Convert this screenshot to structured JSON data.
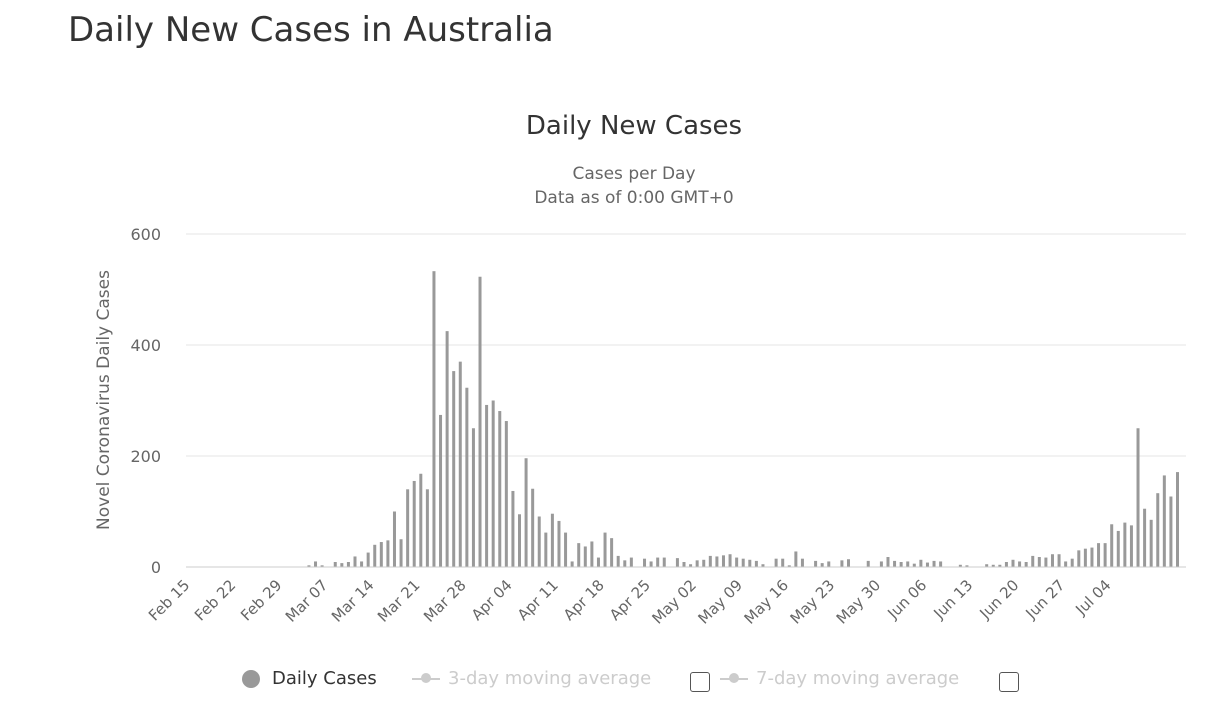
{
  "page": {
    "title": "Daily New Cases in Australia"
  },
  "chart_data": {
    "type": "bar",
    "title": "Daily New Cases",
    "subtitle": [
      "Cases per Day",
      "Data as of 0:00 GMT+0"
    ],
    "xlabel": "",
    "ylabel": "Novel Coronavirus Daily Cases",
    "ylim": [
      0,
      600
    ],
    "yticks": [
      0,
      200,
      400,
      600
    ],
    "grid": true,
    "legend_position": "bottom",
    "tick_labels": [
      "Feb 15",
      "Feb 22",
      "Feb 29",
      "Mar 07",
      "Mar 14",
      "Mar 21",
      "Mar 28",
      "Apr 04",
      "Apr 11",
      "Apr 18",
      "Apr 25",
      "May 02",
      "May 09",
      "May 16",
      "May 23",
      "May 30",
      "Jun 06",
      "Jun 13",
      "Jun 20",
      "Jun 27",
      "Jul 04"
    ],
    "colors": {
      "bar": "#999999",
      "grid": "#e6e6e6",
      "axis": "#cccccc",
      "text": "#666666"
    },
    "series": [
      {
        "name": "Daily Cases",
        "start_date": "Feb 15",
        "values": [
          0,
          0,
          0,
          0,
          0,
          0,
          0,
          0,
          0,
          0,
          0,
          0,
          0,
          0,
          0,
          0,
          0,
          0,
          3,
          10,
          3,
          0,
          9,
          7,
          9,
          19,
          10,
          26,
          40,
          45,
          48,
          100,
          50,
          140,
          155,
          168,
          140,
          533,
          274,
          425,
          353,
          370,
          323,
          250,
          523,
          292,
          300,
          281,
          263,
          137,
          95,
          196,
          141,
          91,
          62,
          96,
          83,
          62,
          10,
          43,
          37,
          46,
          17,
          62,
          52,
          20,
          12,
          17,
          0,
          15,
          10,
          17,
          17,
          0,
          16,
          9,
          5,
          12,
          13,
          20,
          19,
          21,
          23,
          17,
          15,
          13,
          11,
          5,
          0,
          15,
          15,
          3,
          28,
          15,
          0,
          11,
          7,
          10,
          0,
          12,
          14,
          0,
          0,
          11,
          0,
          10,
          18,
          11,
          9,
          10,
          6,
          13,
          8,
          11,
          10,
          0,
          0,
          4,
          3,
          0,
          0,
          5,
          4,
          4,
          9,
          13,
          10,
          9,
          20,
          18,
          17,
          23,
          23,
          10,
          15,
          30,
          33,
          35,
          43,
          43,
          77,
          65,
          80,
          75,
          250,
          105,
          85,
          133,
          165,
          127,
          171
        ]
      },
      {
        "name": "3-day moving average",
        "values": []
      },
      {
        "name": "7-day moving average",
        "values": []
      }
    ]
  }
}
